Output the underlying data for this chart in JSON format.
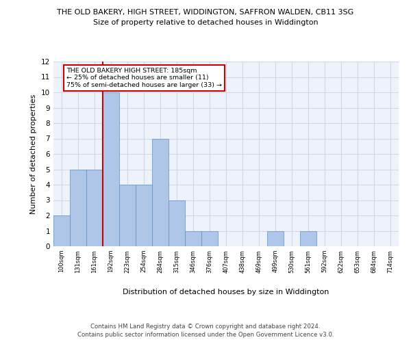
{
  "title_line1": "THE OLD BAKERY, HIGH STREET, WIDDINGTON, SAFFRON WALDEN, CB11 3SG",
  "title_line2": "Size of property relative to detached houses in Widdington",
  "xlabel": "Distribution of detached houses by size in Widdington",
  "ylabel": "Number of detached properties",
  "bin_labels": [
    "100sqm",
    "131sqm",
    "161sqm",
    "192sqm",
    "223sqm",
    "254sqm",
    "284sqm",
    "315sqm",
    "346sqm",
    "376sqm",
    "407sqm",
    "438sqm",
    "469sqm",
    "499sqm",
    "530sqm",
    "561sqm",
    "592sqm",
    "622sqm",
    "653sqm",
    "684sqm",
    "714sqm"
  ],
  "bar_values": [
    2,
    5,
    5,
    10,
    4,
    4,
    7,
    3,
    1,
    1,
    0,
    0,
    0,
    1,
    0,
    1,
    0,
    0,
    0,
    0,
    0
  ],
  "bar_color": "#aec6e8",
  "bar_edge_color": "#5a8fc0",
  "property_line_x": 3,
  "property_line_label": "THE OLD BAKERY HIGH STREET: 185sqm",
  "annotation_line1": "← 25% of detached houses are smaller (11)",
  "annotation_line2": "75% of semi-detached houses are larger (33) →",
  "annotation_box_color": "#ffffff",
  "annotation_box_edge_color": "#cc0000",
  "vline_color": "#cc0000",
  "ylim": [
    0,
    12
  ],
  "yticks": [
    0,
    1,
    2,
    3,
    4,
    5,
    6,
    7,
    8,
    9,
    10,
    11,
    12
  ],
  "grid_color": "#d0d8e8",
  "background_color": "#eef2fb",
  "footer_line1": "Contains HM Land Registry data © Crown copyright and database right 2024.",
  "footer_line2": "Contains public sector information licensed under the Open Government Licence v3.0."
}
